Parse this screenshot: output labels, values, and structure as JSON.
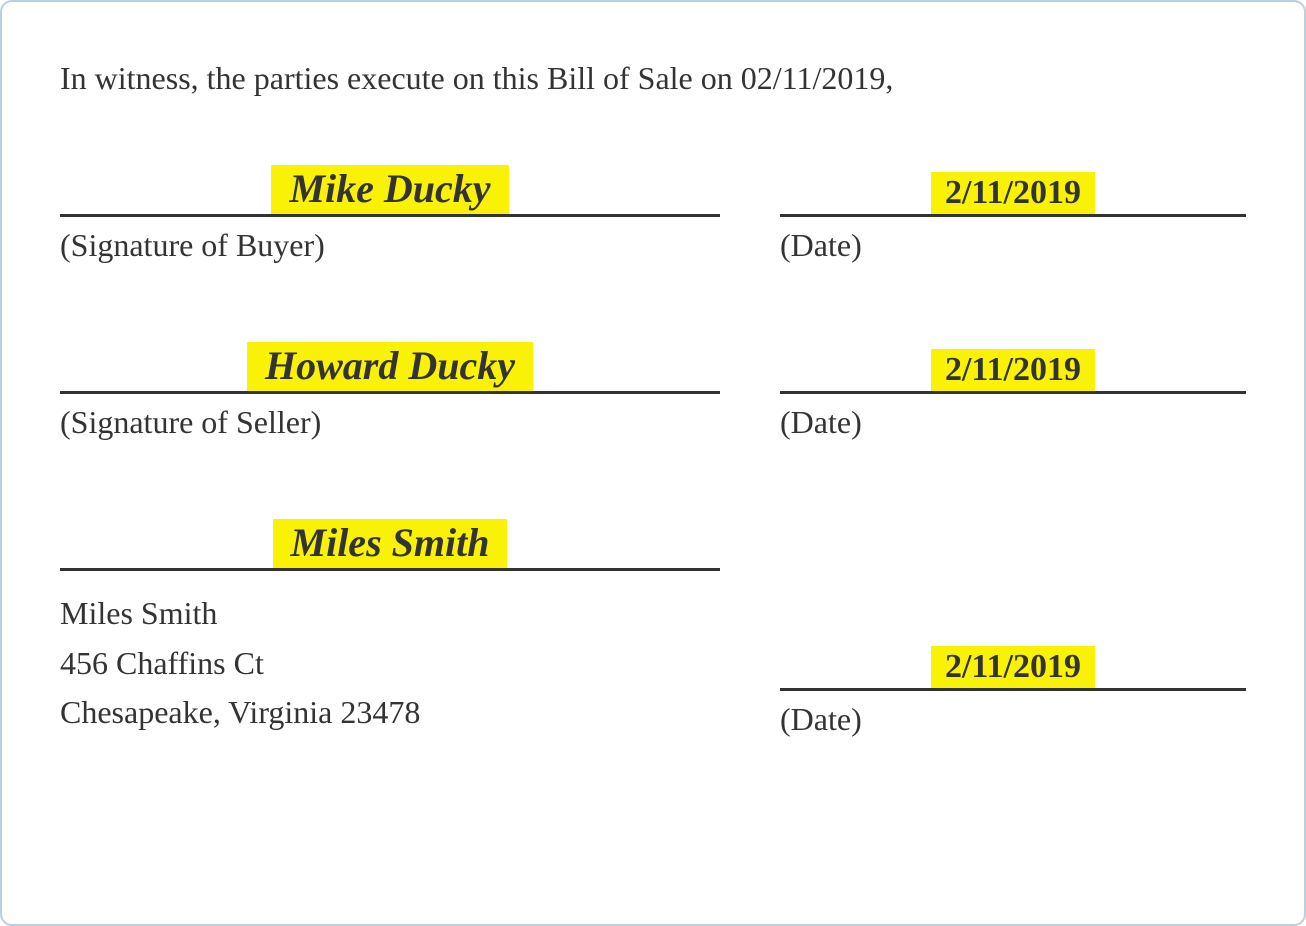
{
  "colors": {
    "border": "#b8cfe4",
    "text": "#333333",
    "highlight_bg": "#faf204",
    "underline": "#333333",
    "background": "#ffffff"
  },
  "typography": {
    "body_family": "Times New Roman",
    "body_size_pt": 24,
    "signature_family": "Brush Script MT",
    "signature_style": "italic bold",
    "signature_size_pt": 30,
    "date_weight": "bold",
    "date_size_pt": 26
  },
  "intro_text": "In witness, the parties execute on this Bill of Sale on 02/11/2019,",
  "signature_blocks": [
    {
      "signature": "Mike Ducky",
      "caption_left": "(Signature of Buyer)",
      "date": "2/11/2019",
      "caption_right": "(Date)"
    },
    {
      "signature": "Howard Ducky",
      "caption_left": "(Signature of Seller)",
      "date": "2/11/2019",
      "caption_right": "(Date)"
    },
    {
      "signature": "Miles Smith",
      "caption_left": "",
      "date": "2/11/2019",
      "caption_right": "(Date)"
    }
  ],
  "witness_address": {
    "name": "Miles Smith",
    "street": "456 Chaffins Ct",
    "city_state_zip": "Chesapeake, Virginia 23478"
  }
}
